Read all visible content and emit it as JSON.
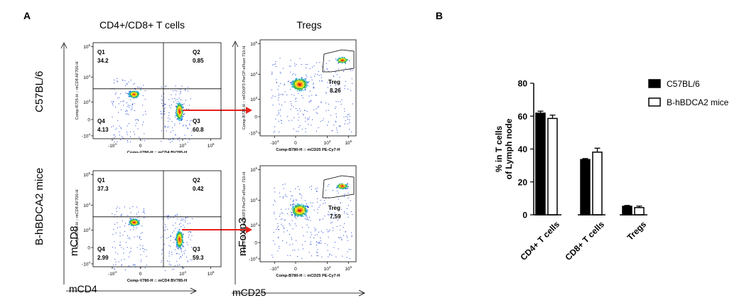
{
  "panel_a": {
    "letter": "A",
    "col1_title": "CD4+/CD8+ T cells",
    "col2_title": "Tregs",
    "row1_label": "C57BL/6",
    "row2_label": "B-hBDCA2 mice",
    "y_axis_label": "mCD8",
    "x_axis_label": "mCD4",
    "tregs_y_label": "mFoxp3",
    "tregs_x_label": "mCD25",
    "plot1_ylabel": "Comp-R725-H :: mCD8 AF700-H",
    "plot1_xlabel": "Comp-V780-H :: mCD4 BV785-H",
    "plot2_ylabel": "Comp-B725-H :: mFOXP3 PerCP-eFluor 710-H",
    "plot2_xlabel": "Comp-B780-H :: mCD25 PE-Cy7-H",
    "ticks_y": [
      "10^5",
      "10^4",
      "10^3",
      "0",
      "-10^4"
    ],
    "ticks_x": [
      "-10^4",
      "0",
      "10^4",
      "10^5"
    ],
    "quadrants_c57": [
      {
        "name": "Q1",
        "value": "34.2"
      },
      {
        "name": "Q2",
        "value": "0.85"
      },
      {
        "name": "Q3",
        "value": "60.8"
      },
      {
        "name": "Q4",
        "value": "4.13"
      }
    ],
    "quadrants_bhbdca2": [
      {
        "name": "Q1",
        "value": "37.3"
      },
      {
        "name": "Q2",
        "value": "0.42"
      },
      {
        "name": "Q3",
        "value": "59.3"
      },
      {
        "name": "Q4",
        "value": "2.99"
      }
    ],
    "treg_gate_name": "Treg",
    "treg_c57": "8.26",
    "treg_bhbdca2": "7.59",
    "arrow_color": "#e8211b"
  },
  "chart_data": {
    "type": "bar",
    "letter": "B",
    "categories": [
      "CD4+ T cells",
      "CD8+ T cells",
      "Tregs"
    ],
    "series": [
      {
        "name": "C57BL/6",
        "values": [
          61.8,
          33.6,
          5.2
        ],
        "errors": [
          1.2,
          0.6,
          0.5
        ],
        "fill": "#000000"
      },
      {
        "name": "B-hBDCA2 mice",
        "values": [
          58.6,
          38.1,
          4.4
        ],
        "errors": [
          2.0,
          2.4,
          0.9
        ],
        "fill": "#ffffff"
      }
    ],
    "ylabel_line1": "% in T cells",
    "ylabel_line2": "of Lymph node",
    "ylim": [
      0,
      80
    ],
    "yticks": [
      0,
      20,
      40,
      60,
      80
    ],
    "legend_position": "right"
  }
}
